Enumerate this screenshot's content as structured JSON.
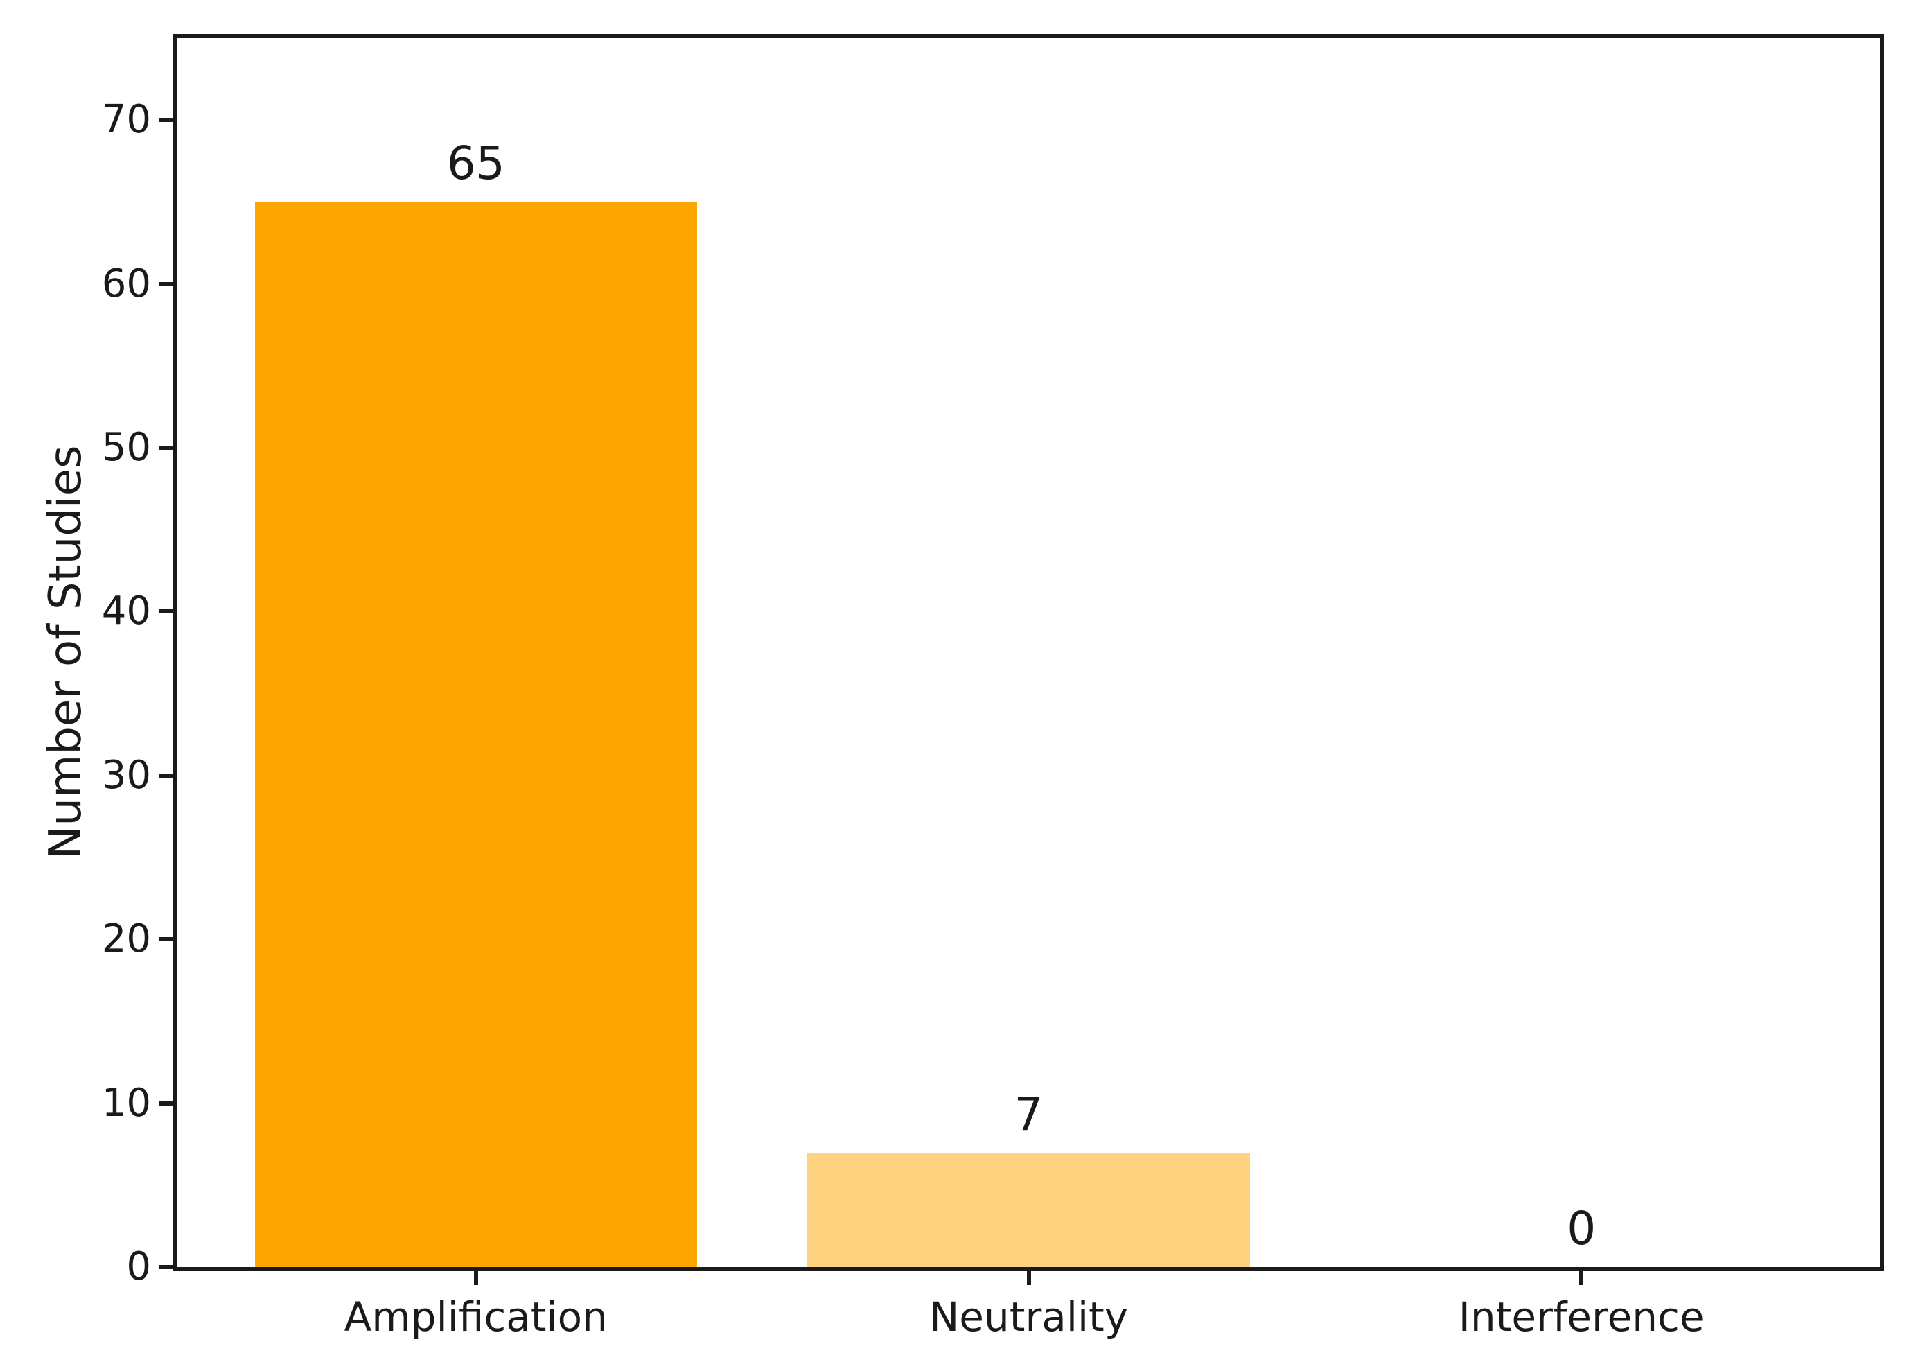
{
  "chart_data": {
    "type": "bar",
    "title": "",
    "categories": [
      "Amplification",
      "Neutrality",
      "Interference"
    ],
    "values": [
      65,
      7,
      0
    ],
    "bar_labels": [
      "65",
      "7",
      "0"
    ],
    "bar_colors": [
      "#FFA500",
      "#FFD280",
      null
    ],
    "xlabel": "",
    "ylabel": "Number of Studies",
    "xlim": [
      -0.54,
      2.54
    ],
    "ylim": [
      0,
      75
    ],
    "yticks": [
      0,
      10,
      20,
      30,
      40,
      50,
      60,
      70
    ],
    "bar_width_units": 0.8,
    "grid": false,
    "legend": "none",
    "colors": {
      "axis": "#1a1a1a",
      "background": "#ffffff"
    }
  }
}
